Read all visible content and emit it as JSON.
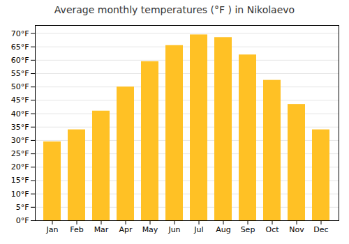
{
  "chart_data": {
    "type": "bar",
    "title": "Average monthly temperatures (°F ) in Nikolaevo",
    "categories": [
      "Jan",
      "Feb",
      "Mar",
      "Apr",
      "May",
      "Jun",
      "Jul",
      "Aug",
      "Sep",
      "Oct",
      "Nov",
      "Dec"
    ],
    "values": [
      29.5,
      34,
      41,
      50,
      59.5,
      65.5,
      69.5,
      68.5,
      62,
      52.5,
      43.5,
      34
    ],
    "color": "#FFC125",
    "ylim": [
      0,
      73
    ],
    "yticks": [
      {
        "value": 0,
        "label": "0°F"
      },
      {
        "value": 5,
        "label": "5°F"
      },
      {
        "value": 10,
        "label": "10°F"
      },
      {
        "value": 15,
        "label": "15°F"
      },
      {
        "value": 20,
        "label": "20°F"
      },
      {
        "value": 25,
        "label": "25°F"
      },
      {
        "value": 30,
        "label": "30°F"
      },
      {
        "value": 35,
        "label": "35°F"
      },
      {
        "value": 40,
        "label": "40°F"
      },
      {
        "value": 45,
        "label": "45°F"
      },
      {
        "value": 50,
        "label": "50°F"
      },
      {
        "value": 55,
        "label": "55°F"
      },
      {
        "value": 60,
        "label": "60°F"
      },
      {
        "value": 65,
        "label": "65°F"
      },
      {
        "value": 70,
        "label": "70°F"
      }
    ],
    "grid": true
  }
}
